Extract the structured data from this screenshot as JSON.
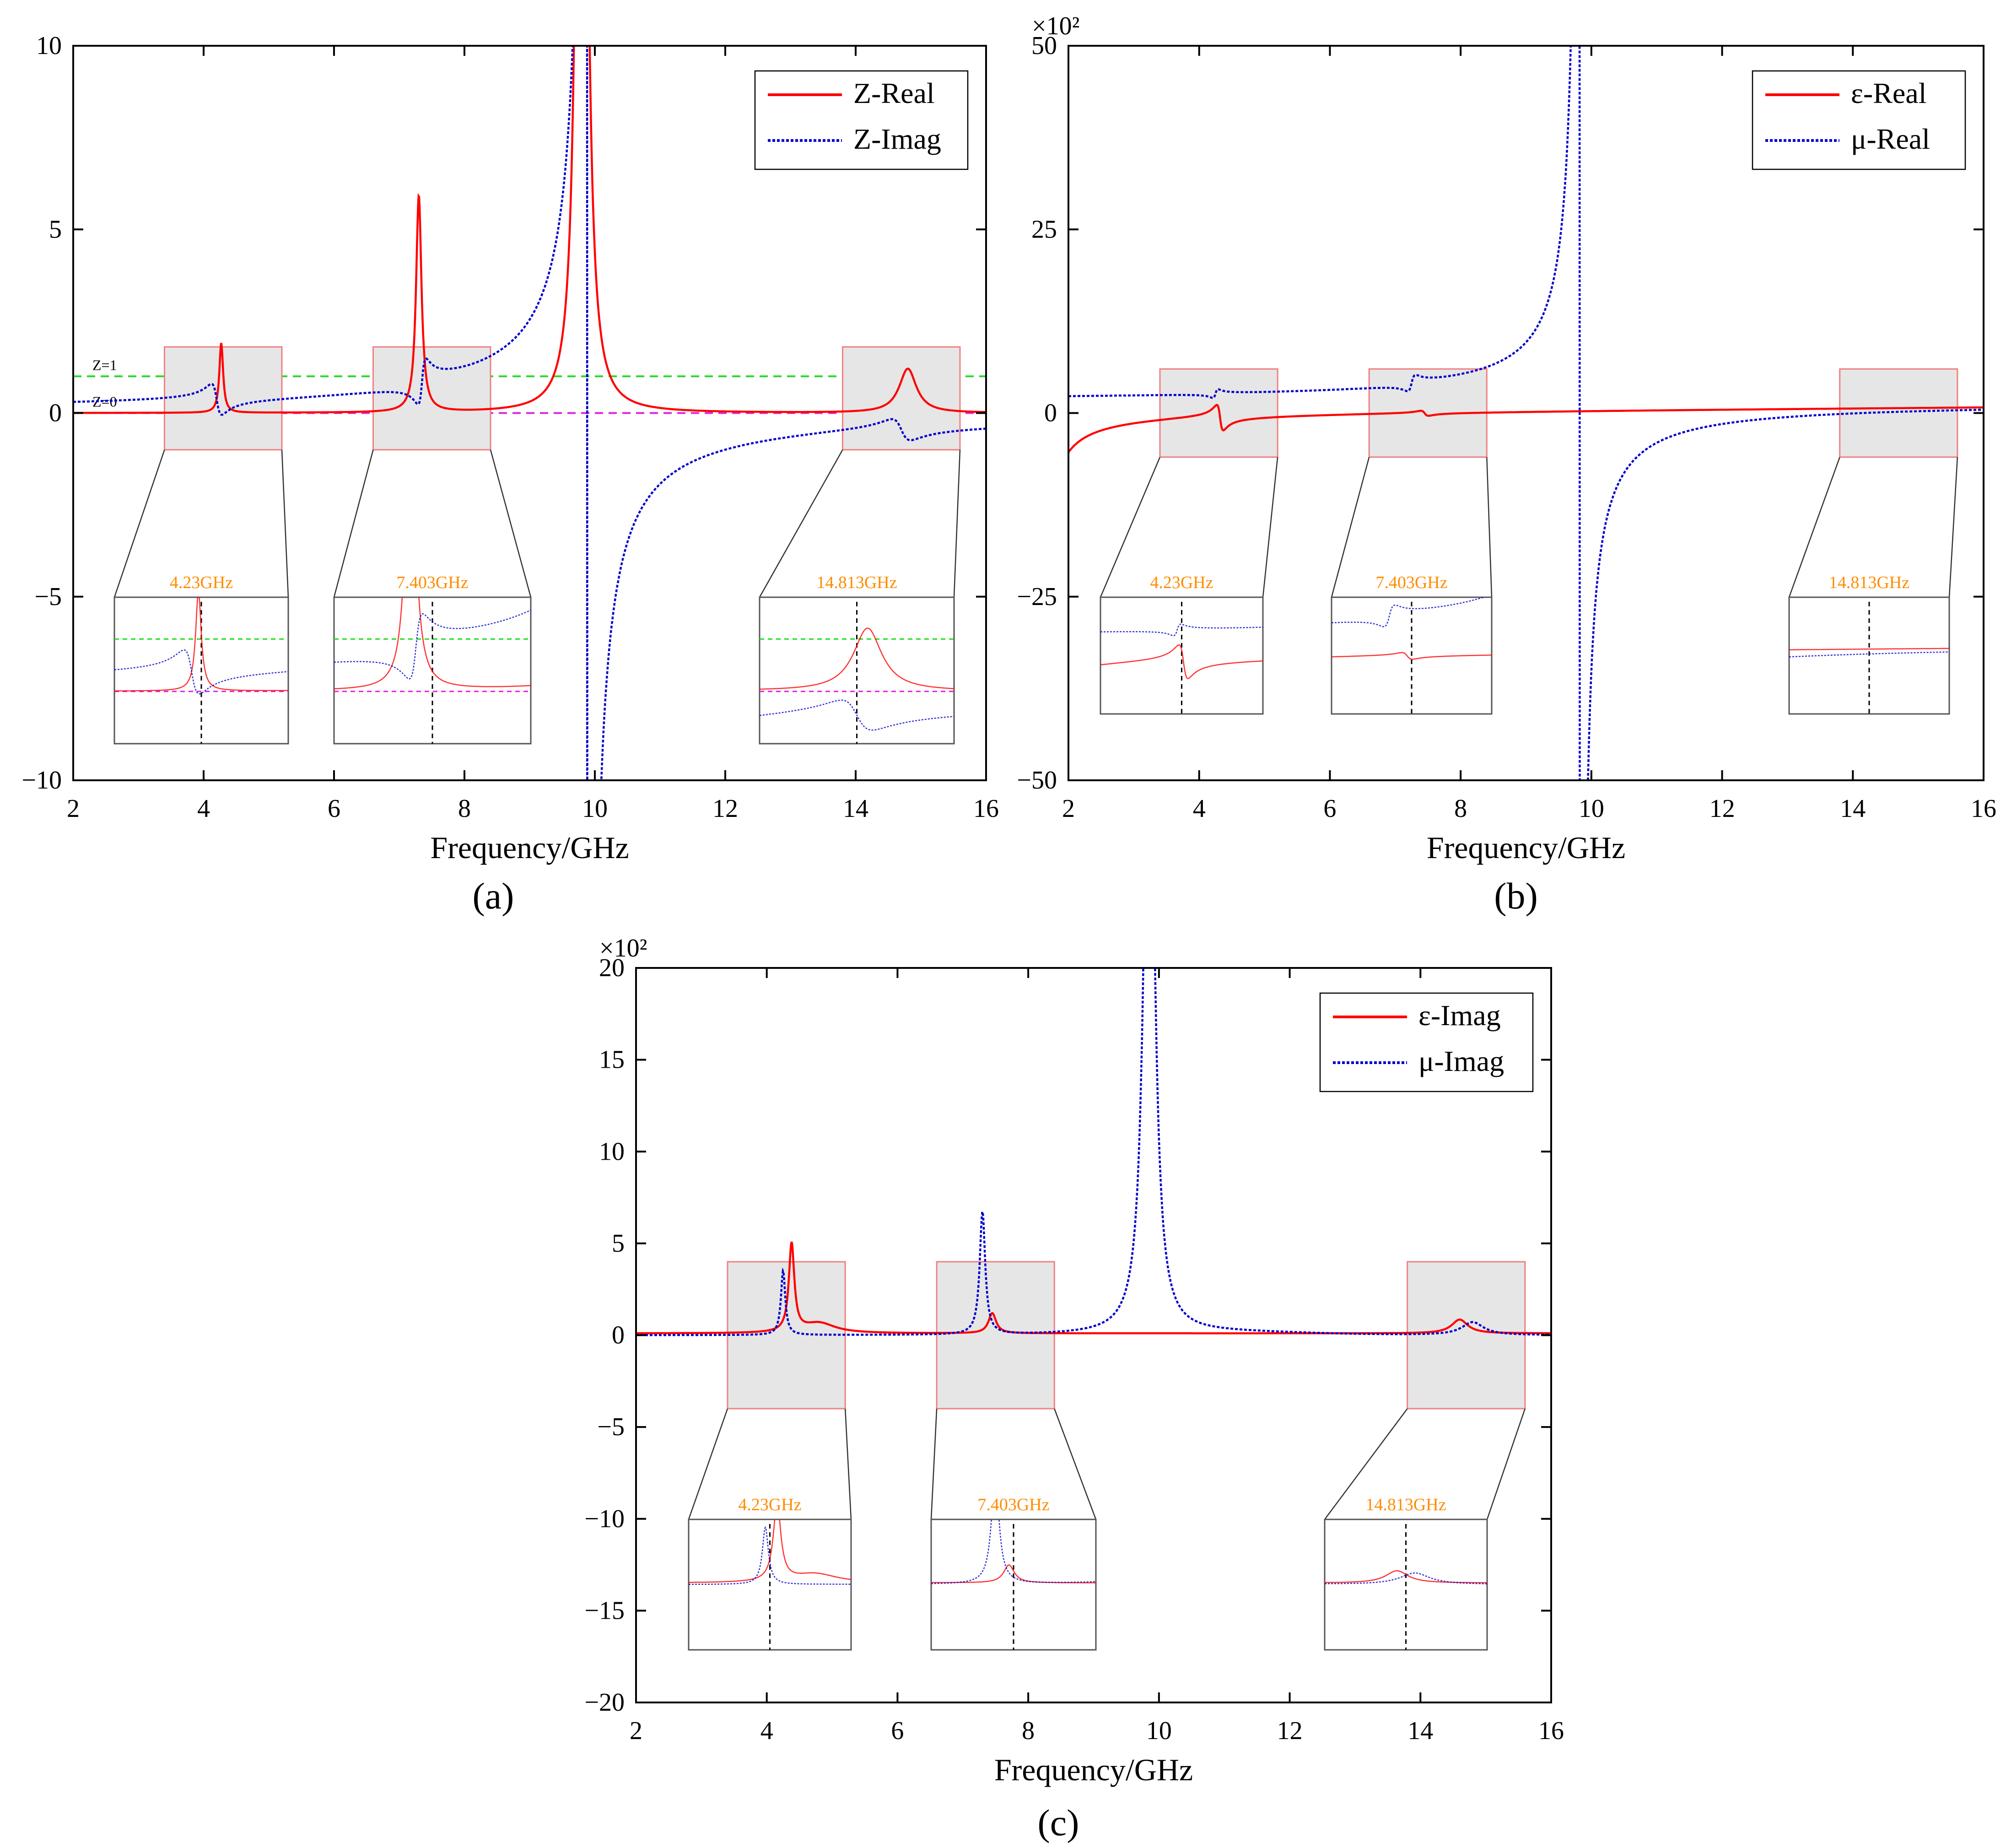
{
  "figure": {
    "x_label": "Frequency/GHz",
    "x_ticks": [
      "2",
      "4",
      "6",
      "8",
      "10",
      "12",
      "14",
      "16"
    ],
    "zoom_box_color": "#e6e6e6",
    "zoom_border_color": "#f08080",
    "marker_label_color": "#ff8c00"
  },
  "chart_data": [
    {
      "id": "a",
      "type": "line",
      "caption": "(a)",
      "xlabel": "Frequency/GHz",
      "xlim": [
        2,
        16
      ],
      "ylim": [
        -10,
        10
      ],
      "y_ticks": [
        "10",
        "5",
        "0",
        "−5",
        "−10"
      ],
      "y_multiplier": "",
      "legend": {
        "position": "top-right",
        "entries": [
          "Z-Real",
          "Z-Imag"
        ]
      },
      "series": [
        {
          "name": "Z-Real",
          "color": "#ff0000",
          "style": "solid",
          "model": "zreal"
        },
        {
          "name": "Z-Imag",
          "color": "#0000cc",
          "style": "dotted",
          "model": "zimag"
        }
      ],
      "reference_lines": [
        {
          "label": "Z=1",
          "y": 1,
          "color": "#22dd22"
        },
        {
          "label": "Z=0",
          "y": 0,
          "color": "#dd22dd"
        }
      ],
      "zoom_regions": [
        {
          "label": "4.23GHz",
          "x_range": [
            3.4,
            5.2
          ],
          "y_range": [
            -1,
            1.8
          ]
        },
        {
          "label": "7.403GHz",
          "x_range": [
            6.6,
            8.4
          ],
          "y_range": [
            -1,
            1.8
          ]
        },
        {
          "label": "14.813GHz",
          "x_range": [
            13.8,
            15.6
          ],
          "y_range": [
            -1,
            1.8
          ]
        }
      ],
      "vertical_marker_x": 9.88
    },
    {
      "id": "b",
      "type": "line",
      "caption": "(b)",
      "xlabel": "Frequency/GHz",
      "xlim": [
        2,
        16
      ],
      "ylim": [
        -50,
        50
      ],
      "y_ticks": [
        "50",
        "25",
        "0",
        "−25",
        "−50"
      ],
      "y_multiplier": "×10²",
      "legend": {
        "position": "top-right",
        "entries": [
          "ε-Real",
          "μ-Real"
        ]
      },
      "series": [
        {
          "name": "ε-Real",
          "color": "#ff0000",
          "style": "solid",
          "model": "ereal"
        },
        {
          "name": "μ-Real",
          "color": "#0000cc",
          "style": "dotted",
          "model": "mreal"
        }
      ],
      "zoom_regions": [
        {
          "label": "4.23GHz",
          "x_range": [
            3.4,
            5.2
          ],
          "y_range": [
            -6,
            6
          ]
        },
        {
          "label": "7.403GHz",
          "x_range": [
            6.6,
            8.4
          ],
          "y_range": [
            -6,
            6
          ]
        },
        {
          "label": "14.813GHz",
          "x_range": [
            13.8,
            15.6
          ],
          "y_range": [
            -6,
            6
          ]
        }
      ]
    },
    {
      "id": "c",
      "type": "line",
      "caption": "(c)",
      "xlabel": "Frequency/GHz",
      "xlim": [
        2,
        16
      ],
      "ylim": [
        -20,
        20
      ],
      "y_ticks": [
        "20",
        "15",
        "10",
        "5",
        "0",
        "−5",
        "−10",
        "−15",
        "−20"
      ],
      "y_multiplier": "×10²",
      "legend": {
        "position": "top-right",
        "entries": [
          "ε-Imag",
          "μ-Imag"
        ]
      },
      "series": [
        {
          "name": "ε-Imag",
          "color": "#ff0000",
          "style": "solid",
          "model": "eimag"
        },
        {
          "name": "μ-Imag",
          "color": "#0000cc",
          "style": "dotted",
          "model": "mimag"
        }
      ],
      "zoom_regions": [
        {
          "label": "4.23GHz",
          "x_range": [
            3.4,
            5.2
          ],
          "y_range": [
            -4,
            4
          ]
        },
        {
          "label": "7.403GHz",
          "x_range": [
            6.6,
            8.4
          ],
          "y_range": [
            -4,
            4
          ]
        },
        {
          "label": "14.813GHz",
          "x_range": [
            13.8,
            15.6
          ],
          "y_range": [
            -4,
            4
          ]
        }
      ]
    }
  ]
}
